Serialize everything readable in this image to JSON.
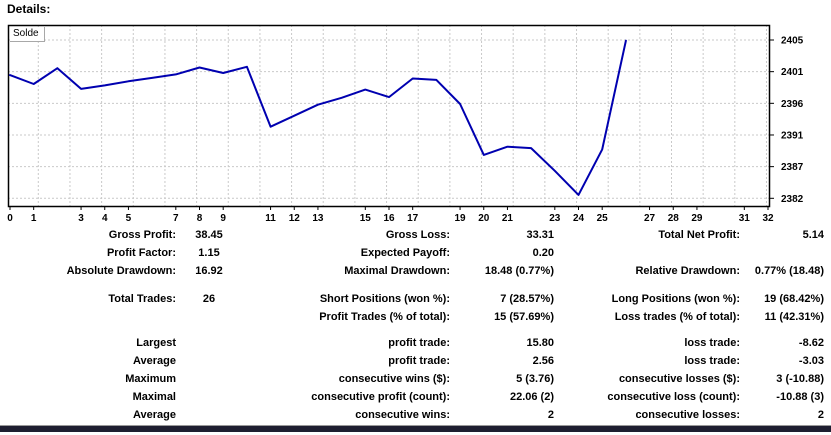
{
  "header": {
    "title": "Details:"
  },
  "chart_data": {
    "type": "line",
    "legend": "Solde",
    "series": [
      {
        "name": "Solde",
        "x": [
          0,
          1,
          2,
          3,
          4,
          5,
          6,
          7,
          8,
          9,
          10,
          11,
          12,
          13,
          14,
          15,
          16,
          17,
          18,
          19,
          20,
          21,
          22,
          23,
          24,
          25,
          26
        ],
        "values": [
          2399.9,
          2398.6,
          2400.9,
          2397.9,
          2398.4,
          2399.0,
          2399.5,
          2400.0,
          2401.0,
          2400.2,
          2401.1,
          2392.4,
          2394.0,
          2395.6,
          2396.6,
          2397.8,
          2396.7,
          2399.4,
          2399.2,
          2395.7,
          2388.3,
          2389.5,
          2389.3,
          2386.0,
          2382.5,
          2389.1,
          2404.9
        ]
      }
    ],
    "x_axis": {
      "range": [
        0,
        32
      ],
      "tick_labels": [
        0,
        1,
        3,
        4,
        5,
        7,
        8,
        9,
        11,
        12,
        13,
        15,
        16,
        17,
        19,
        20,
        21,
        23,
        24,
        25,
        27,
        28,
        29,
        31,
        32
      ]
    },
    "y_axis": {
      "range": [
        2382,
        2405
      ],
      "tick_labels": [
        2405,
        2401,
        2396,
        2391,
        2387,
        2382
      ]
    },
    "grid": true,
    "legend_position": "top-left",
    "line_color": "#0000b0",
    "grid_color": "#c9c9c9",
    "frame_color": "#000000"
  },
  "table": {
    "rows": [
      {
        "c1_label": "Gross Profit:",
        "c1_value": "38.45",
        "c2_label": "Gross Loss:",
        "c2_value": "33.31",
        "c3_label": "Total Net Profit:",
        "c3_value": "5.14"
      },
      {
        "c1_label": "Profit Factor:",
        "c1_value": "1.15",
        "c2_label": "Expected Payoff:",
        "c2_value": "0.20",
        "c3_label": "",
        "c3_value": ""
      },
      {
        "c1_label": "Absolute Drawdown:",
        "c1_value": "16.92",
        "c2_label": "Maximal Drawdown:",
        "c2_value": "18.48 (0.77%)",
        "c3_label": "Relative Drawdown:",
        "c3_value": "0.77% (18.48)"
      },
      {
        "c1_label": "Total Trades:",
        "c1_value": "26",
        "c2_label": "Short Positions (won %):",
        "c2_value": "7 (28.57%)",
        "c3_label": "Long Positions (won %):",
        "c3_value": "19 (68.42%)"
      },
      {
        "c1_label": "",
        "c1_value": "",
        "c2_label": "Profit Trades (% of total):",
        "c2_value": "15 (57.69%)",
        "c3_label": "Loss trades (% of total):",
        "c3_value": "11 (42.31%)"
      },
      {
        "c1_label": "Largest",
        "c1_value": "",
        "c2_label": "profit trade:",
        "c2_value": "15.80",
        "c3_label": "loss trade:",
        "c3_value": "-8.62"
      },
      {
        "c1_label": "Average",
        "c1_value": "",
        "c2_label": "profit trade:",
        "c2_value": "2.56",
        "c3_label": "loss trade:",
        "c3_value": "-3.03"
      },
      {
        "c1_label": "Maximum",
        "c1_value": "",
        "c2_label": "consecutive wins ($):",
        "c2_value": "5 (3.76)",
        "c3_label": "consecutive losses ($):",
        "c3_value": "3 (-10.88)"
      },
      {
        "c1_label": "Maximal",
        "c1_value": "",
        "c2_label": "consecutive profit (count):",
        "c2_value": "22.06 (2)",
        "c3_label": "consecutive loss (count):",
        "c3_value": "-10.88 (3)"
      },
      {
        "c1_label": "Average",
        "c1_value": "",
        "c2_label": "consecutive wins:",
        "c2_value": "2",
        "c3_label": "consecutive losses:",
        "c3_value": "2"
      }
    ],
    "gap_before_rows": {
      "large": 3,
      "small": 5
    }
  },
  "divider_color": "#1e1e30"
}
